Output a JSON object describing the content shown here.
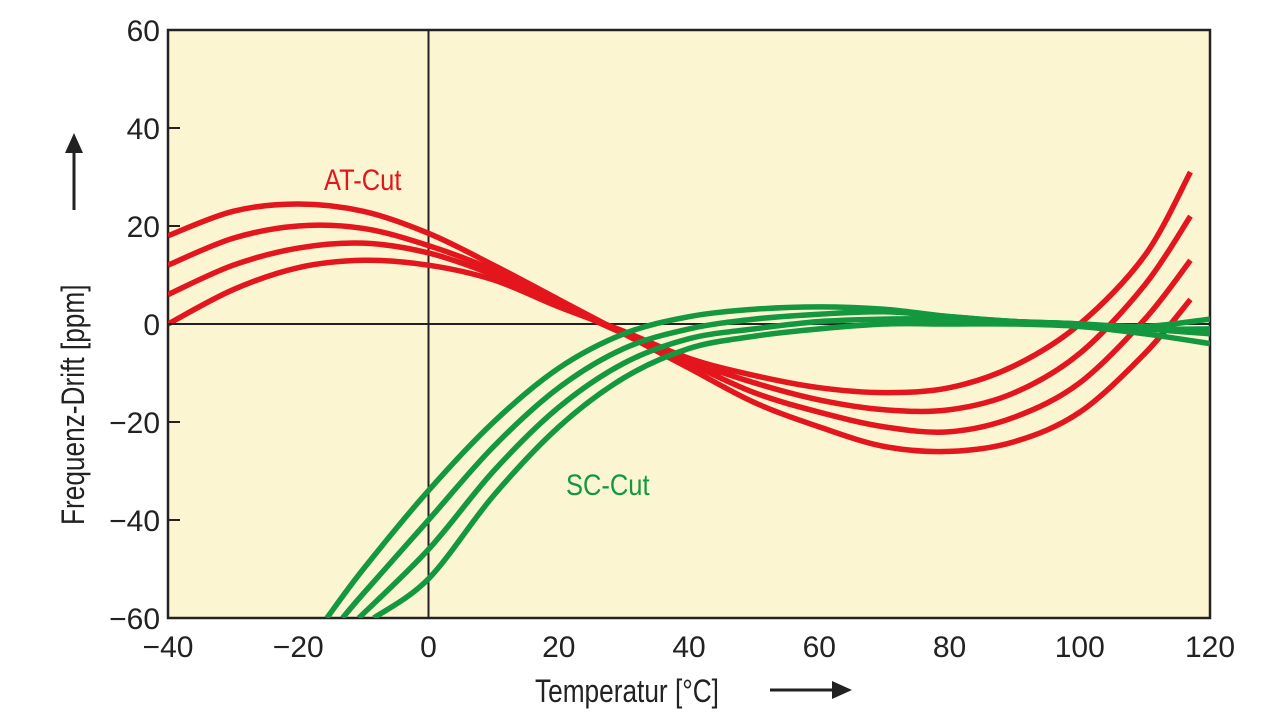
{
  "chart_data": {
    "type": "line",
    "title": "",
    "xlabel": "Temperatur [°C]",
    "ylabel": "Frequenz-Drift [ppm]",
    "xlim": [
      -40,
      120
    ],
    "ylim": [
      -60,
      60
    ],
    "xticks": [
      -40,
      -20,
      0,
      20,
      40,
      60,
      80,
      100,
      120
    ],
    "yticks": [
      -60,
      -40,
      -20,
      0,
      20,
      40,
      60
    ],
    "xtick_labels": [
      "−40",
      "−20",
      "0",
      "20",
      "40",
      "60",
      "80",
      "100",
      "120"
    ],
    "ytick_labels": [
      "−60",
      "−40",
      "−20",
      "0",
      "20",
      "40",
      "60"
    ],
    "grid": false,
    "annotations": [
      {
        "text": "AT-Cut",
        "color": "#e3151d"
      },
      {
        "text": "SC-Cut",
        "color": "#13983f"
      }
    ],
    "series": [
      {
        "name": "AT-Cut 1",
        "group": "AT-Cut",
        "color": "#e3151d",
        "x": [
          -40,
          -30,
          -20,
          -10,
          0,
          10,
          20,
          30,
          40,
          50,
          60,
          70,
          80,
          90,
          100,
          110,
          117
        ],
        "y": [
          18,
          23,
          24.5,
          23,
          18.5,
          12,
          5,
          -2,
          -9,
          -16,
          -21,
          -25,
          -26,
          -24,
          -18,
          -6,
          5
        ]
      },
      {
        "name": "AT-Cut 2",
        "group": "AT-Cut",
        "color": "#e3151d",
        "x": [
          -40,
          -30,
          -20,
          -10,
          0,
          10,
          20,
          30,
          40,
          50,
          60,
          70,
          80,
          90,
          100,
          110,
          117
        ],
        "y": [
          12,
          17.5,
          20,
          19.5,
          16,
          11,
          4.5,
          -2,
          -8,
          -14,
          -18,
          -21,
          -22,
          -19,
          -12,
          1,
          13
        ]
      },
      {
        "name": "AT-Cut 3",
        "group": "AT-Cut",
        "color": "#e3151d",
        "x": [
          -40,
          -30,
          -20,
          -10,
          0,
          10,
          20,
          30,
          40,
          50,
          60,
          70,
          80,
          90,
          100,
          110,
          117
        ],
        "y": [
          6,
          12,
          15.5,
          16.5,
          14.5,
          10,
          4,
          -2,
          -7.5,
          -12,
          -15.5,
          -17.5,
          -17.5,
          -14,
          -6,
          8,
          22
        ]
      },
      {
        "name": "AT-Cut 4",
        "group": "AT-Cut",
        "color": "#e3151d",
        "x": [
          -40,
          -30,
          -20,
          -10,
          0,
          10,
          20,
          30,
          40,
          50,
          60,
          70,
          80,
          90,
          100,
          110,
          117
        ],
        "y": [
          0,
          7,
          11.5,
          13,
          12,
          9,
          3.5,
          -1.5,
          -7,
          -10.5,
          -13,
          -14,
          -13,
          -8.5,
          0,
          14,
          31
        ]
      },
      {
        "name": "SC-Cut 1",
        "group": "SC-Cut",
        "color": "#13983f",
        "x": [
          -15.6,
          -10,
          0,
          10,
          20,
          30,
          40,
          50,
          60,
          70,
          80,
          90,
          100,
          110,
          120
        ],
        "y": [
          -60,
          -50,
          -34,
          -20,
          -9,
          -2,
          1.5,
          3,
          3.5,
          3,
          1.5,
          0.5,
          0,
          -0.5,
          1
        ]
      },
      {
        "name": "SC-Cut 2",
        "group": "SC-Cut",
        "color": "#13983f",
        "x": [
          -13.2,
          -10,
          0,
          10,
          20,
          30,
          40,
          50,
          60,
          70,
          80,
          90,
          100,
          110,
          120
        ],
        "y": [
          -60,
          -55,
          -40,
          -25,
          -13,
          -5,
          -1,
          1,
          2,
          2.5,
          1.5,
          0.5,
          0,
          -1,
          -1
        ]
      },
      {
        "name": "SC-Cut 3",
        "group": "SC-Cut",
        "color": "#13983f",
        "x": [
          -10.7,
          0,
          10,
          20,
          30,
          40,
          50,
          60,
          70,
          80,
          90,
          100,
          110,
          120
        ],
        "y": [
          -60,
          -46,
          -30,
          -17,
          -8,
          -3,
          -1,
          0.5,
          1,
          1,
          0.5,
          0,
          -1,
          -2
        ]
      },
      {
        "name": "SC-Cut 4",
        "group": "SC-Cut",
        "color": "#13983f",
        "x": [
          -8.4,
          0,
          10,
          20,
          30,
          40,
          50,
          60,
          70,
          80,
          90,
          100,
          110,
          120
        ],
        "y": [
          -60,
          -52,
          -35,
          -21,
          -11,
          -5,
          -2.5,
          -1,
          0,
          0,
          0,
          -0.5,
          -2,
          -4
        ]
      }
    ]
  }
}
